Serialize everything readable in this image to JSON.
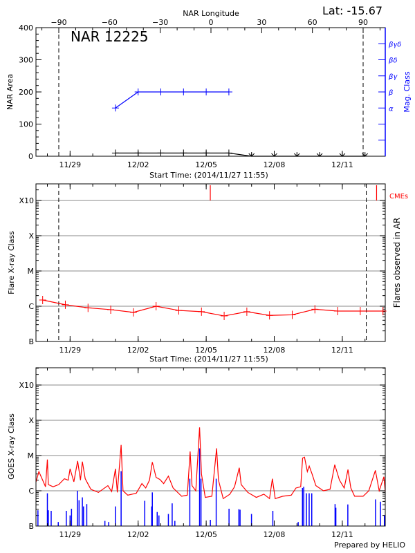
{
  "header": {
    "lat_label": "Lat: -15.67",
    "longitude_axis_title": "NAR Longitude",
    "region_title": "NAR 12225"
  },
  "footer": "Prepared by HELIO",
  "colors": {
    "axes": "#000000",
    "mag_class": "#0000ff",
    "flares": "#ff0000",
    "goes": "#ff0000",
    "events": "#0000ff",
    "grid": "#a0a0a0"
  },
  "chart_data": [
    {
      "type": "line",
      "xlabel": "Start Time: (2014/11/27 11:55)",
      "ylabel": "NAR Area",
      "y2label": "Mag. Class",
      "ylim": [
        0,
        400
      ],
      "yticks": [
        0,
        100,
        200,
        300,
        400
      ],
      "x_tick_labels": [
        "11/29",
        "12/02",
        "12/05",
        "12/08",
        "12/11"
      ],
      "top_axis": {
        "label": "NAR Longitude",
        "ticks": [
          -90,
          -60,
          -30,
          0,
          30,
          60,
          90
        ]
      },
      "limb_longitudes": [
        -90,
        90
      ],
      "mag_class_levels": [
        "α",
        "β",
        "βγ",
        "βδ",
        "βγδ"
      ],
      "area": {
        "dates": [
          "12/01 00:00",
          "12/02 00:00",
          "12/03 00:00",
          "12/04 00:00",
          "12/05 00:00",
          "12/06 00:00",
          "12/07 00:00",
          "12/08 00:00",
          "12/09 00:00",
          "12/10 00:00",
          "12/11 00:00",
          "12/12 00:00"
        ],
        "values": [
          10,
          10,
          10,
          10,
          10,
          10,
          0,
          0,
          0,
          0,
          0,
          0
        ]
      },
      "mag_class": {
        "dates": [
          "12/01 00:00",
          "12/02 00:00",
          "12/03 00:00",
          "12/04 00:00",
          "12/05 00:00",
          "12/06 00:00"
        ],
        "values": [
          "α",
          "β",
          "β",
          "β",
          "β",
          "β"
        ]
      }
    },
    {
      "type": "line",
      "xlabel": "Start Time: (2014/11/27 11:55)",
      "ylabel": "Flare X-ray Class",
      "y2label": "Flares observed in AR",
      "y_scale": "log",
      "ylim": [
        1e-07,
        0.0032
      ],
      "class_ticks": [
        {
          "label": "B",
          "value": 1e-07
        },
        {
          "label": "C",
          "value": 1e-06
        },
        {
          "label": "M",
          "value": 1e-05
        },
        {
          "label": "X",
          "value": 0.0001
        },
        {
          "label": "X10",
          "value": 0.001
        }
      ],
      "x_tick_labels": [
        "11/29",
        "12/02",
        "12/05",
        "12/08",
        "12/11"
      ],
      "limb_crossings": [
        "11/28 12:00",
        "12/12 01:20"
      ],
      "cme_label": "CMEs",
      "cmes": [
        "12/05 04:20",
        "12/12 12:15"
      ],
      "flares": {
        "dates": [
          "11/27 19:00",
          "11/28 19:00",
          "11/29 19:00",
          "11/30 19:00",
          "12/01 19:00",
          "12/02 19:00",
          "12/03 19:00",
          "12/04 19:00",
          "12/05 19:00",
          "12/06 19:00",
          "12/07 19:00",
          "12/08 19:00",
          "12/09 19:00",
          "12/10 19:00",
          "12/11 19:00",
          "12/12 19:00"
        ],
        "values": [
          1.5e-06,
          1.1e-06,
          9e-07,
          8e-07,
          6.7e-07,
          1e-06,
          7.6e-07,
          7e-07,
          5.3e-07,
          7e-07,
          5.5e-07,
          5.7e-07,
          8.2e-07,
          7.3e-07,
          7.3e-07,
          7.3e-07
        ]
      }
    },
    {
      "type": "line",
      "ylabel": "GOES X-ray Class",
      "y_scale": "log",
      "ylim": [
        1e-07,
        0.0032
      ],
      "class_ticks": [
        {
          "label": "B",
          "value": 1e-07
        },
        {
          "label": "C",
          "value": 1e-06
        },
        {
          "label": "M",
          "value": 1e-05
        },
        {
          "label": "X",
          "value": 0.0001
        },
        {
          "label": "X10",
          "value": 0.001
        }
      ],
      "x_tick_labels": [
        "11/29",
        "12/02",
        "12/05",
        "12/08",
        "12/11"
      ],
      "goes_flux": {
        "dates": [
          "11/27 12:00",
          "11/27 15:00",
          "11/27 19:00",
          "11/27 22:00",
          "11/28 00:00",
          "11/28 01:00",
          "11/28 06:00",
          "11/28 12:00",
          "11/28 18:00",
          "11/28 22:00",
          "11/29 00:00",
          "11/29 04:00",
          "11/29 08:00",
          "11/29 11:00",
          "11/29 13:00",
          "11/29 16:00",
          "11/29 22:00",
          "11/30 06:00",
          "11/30 16:00",
          "11/30 20:00",
          "12/01 00:00",
          "12/01 02:00",
          "12/01 06:00",
          "12/01 08:00",
          "12/01 13:00",
          "12/01 22:00",
          "12/02 04:00",
          "12/02 08:00",
          "12/02 12:00",
          "12/02 15:00",
          "12/02 19:00",
          "12/02 23:00",
          "12/03 03:00",
          "12/03 08:00",
          "12/03 13:00",
          "12/03 22:00",
          "12/04 04:00",
          "12/04 07:00",
          "12/04 09:00",
          "12/04 13:00",
          "12/04 17:00",
          "12/04 19:00",
          "12/04 23:00",
          "12/05 06:00",
          "12/05 11:00",
          "12/05 13:00",
          "12/05 18:00",
          "12/06 01:00",
          "12/06 06:00",
          "12/06 11:00",
          "12/06 13:00",
          "12/06 20:00",
          "12/07 05:00",
          "12/07 13:00",
          "12/07 19:00",
          "12/07 22:00",
          "12/08 01:00",
          "12/08 09:00",
          "12/08 18:00",
          "12/08 23:00",
          "12/09 04:00",
          "12/09 06:00",
          "12/09 08:00",
          "12/09 11:00",
          "12/09 13:00",
          "12/09 16:00",
          "12/09 20:00",
          "12/10 04:00",
          "12/10 11:00",
          "12/10 16:00",
          "12/10 21:00",
          "12/11 02:00",
          "12/11 06:00",
          "12/11 09:00",
          "12/11 13:00",
          "12/11 22:00",
          "12/12 04:00",
          "12/12 11:00",
          "12/12 15:00",
          "12/12 20:00",
          "12/12 23:00"
        ],
        "values": [
          1.8e-06,
          3.5e-06,
          2e-06,
          1.3e-06,
          7.7e-06,
          1.5e-06,
          1.3e-06,
          1.5e-06,
          2.2e-06,
          2e-06,
          4.2e-06,
          1.8e-06,
          7e-06,
          2e-06,
          6.7e-06,
          2.2e-06,
          1.1e-06,
          9e-07,
          1.4e-06,
          9.5e-07,
          4.2e-06,
          9e-07,
          2e-05,
          1e-06,
          7.5e-07,
          8.5e-07,
          1.6e-06,
          1.2e-06,
          2e-06,
          6.5e-06,
          2.4e-06,
          2.1e-06,
          1.6e-06,
          2.6e-06,
          1.2e-06,
          7e-07,
          7.5e-07,
          1.3e-05,
          1.4e-06,
          1e-06,
          6.3e-05,
          3e-06,
          6.5e-07,
          7e-07,
          1.6e-05,
          2e-06,
          6e-07,
          8e-07,
          1.3e-06,
          4.5e-06,
          1.5e-06,
          9e-07,
          6.5e-07,
          8e-07,
          6e-07,
          2.2e-06,
          6e-07,
          7e-07,
          7.5e-07,
          1.2e-06,
          1.3e-06,
          8.5e-06,
          9e-06,
          3.5e-06,
          5e-06,
          3e-06,
          1.4e-06,
          1e-06,
          1.1e-06,
          5.5e-06,
          2e-06,
          1.2e-06,
          4e-06,
          1.2e-06,
          7e-07,
          7e-07,
          1e-06,
          3.8e-06,
          1e-06,
          2.5e-06,
          9.5e-07
        ]
      },
      "flare_events": {
        "dates": [
          "11/27 14:00",
          "11/28 00:00",
          "11/28 01:00",
          "11/28 04:00",
          "11/28 11:30",
          "11/28 20:00",
          "11/29 00:00",
          "11/29 01:30",
          "11/29 07:45",
          "11/29 09:30",
          "11/29 13:00",
          "11/29 14:15",
          "11/29 17:40",
          "11/30 12:50",
          "11/30 16:50",
          "11/30 23:55",
          "12/01 06:00",
          "12/02 07:00",
          "12/02 14:20",
          "12/02 15:00",
          "12/02 20:10",
          "12/02 22:00",
          "12/03 08:00",
          "12/03 12:00",
          "12/03 14:50",
          "12/04 06:40",
          "12/04 17:00",
          "12/04 18:30",
          "12/05 04:25",
          "12/05 10:35",
          "12/06 00:10",
          "12/06 10:35",
          "12/06 11:50",
          "12/06 23:55",
          "12/07 22:30",
          "12/09 01:20",
          "12/09 05:50",
          "12/09 07:10",
          "12/09 10:00",
          "12/09 12:55",
          "12/09 15:40",
          "12/10 16:20",
          "12/10 17:10",
          "12/11 05:50",
          "12/12 11:10",
          "12/12 16:20",
          "12/12 20:30"
        ],
        "values": [
          2.8e-07,
          8.5e-07,
          2.8e-07,
          2.7e-07,
          1.3e-07,
          2.7e-07,
          2e-07,
          3.1e-07,
          1e-06,
          5.4e-07,
          6.5e-07,
          3.6e-07,
          4.2e-07,
          1.4e-07,
          1.3e-07,
          3.6e-07,
          3.6e-06,
          5.2e-07,
          3.6e-07,
          9e-07,
          2.5e-07,
          2e-07,
          2.2e-07,
          4.4e-07,
          1.4e-07,
          2.2e-06,
          1.6e-05,
          2.2e-06,
          1.5e-07,
          2.2e-06,
          3.1e-07,
          3e-07,
          2.9e-07,
          2.2e-07,
          2.7e-07,
          1.3e-07,
          1.2e-06,
          1.3e-06,
          8.5e-07,
          8.5e-07,
          8.5e-07,
          4.2e-07,
          3.3e-07,
          4.1e-07,
          5.7e-07,
          4.9e-07,
          2e-07
        ]
      }
    }
  ]
}
